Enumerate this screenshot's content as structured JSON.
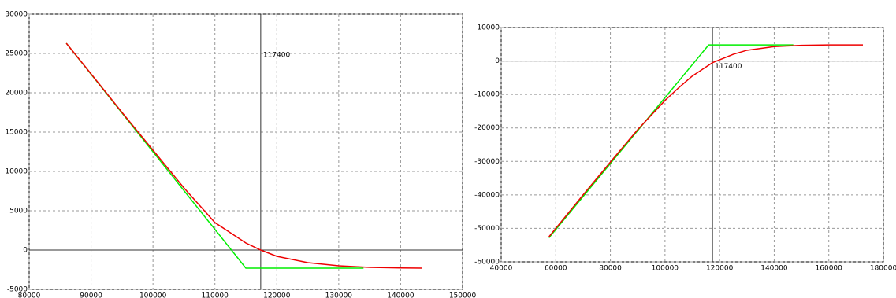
{
  "chart_data": [
    {
      "type": "line",
      "xlim": [
        80000,
        150000
      ],
      "ylim": [
        -5000,
        30000
      ],
      "xticks": [
        80000,
        90000,
        100000,
        110000,
        120000,
        130000,
        140000,
        150000
      ],
      "yticks": [
        -5000,
        0,
        5000,
        10000,
        15000,
        20000,
        25000,
        30000
      ],
      "grid": true,
      "vline": 117400,
      "series": [
        {
          "color": "#00ee00",
          "x": [
            86000,
            115000,
            134000
          ],
          "values": [
            26300,
            -2300,
            -2300
          ]
        },
        {
          "color": "#ee0000",
          "x": [
            86000,
            90000,
            95000,
            100000,
            105000,
            110000,
            115000,
            117400,
            120000,
            125000,
            130000,
            135000,
            140000,
            143500
          ],
          "values": [
            26300,
            22400,
            17500,
            12700,
            7900,
            3500,
            900,
            0,
            -800,
            -1600,
            -2000,
            -2200,
            -2280,
            -2300
          ]
        }
      ]
    },
    {
      "type": "line",
      "xlim": [
        40000,
        180000
      ],
      "ylim": [
        -60000,
        10000
      ],
      "xticks": [
        40000,
        60000,
        80000,
        100000,
        120000,
        140000,
        160000,
        180000
      ],
      "yticks": [
        -60000,
        -50000,
        -40000,
        -30000,
        -20000,
        -10000,
        0,
        10000
      ],
      "grid": true,
      "vline": 117400,
      "series": [
        {
          "color": "#00ee00",
          "x": [
            57500,
            116000,
            147000
          ],
          "values": [
            -52800,
            4800,
            4800
          ]
        },
        {
          "color": "#ee0000",
          "x": [
            57500,
            70000,
            80000,
            90000,
            100000,
            105000,
            110000,
            117400,
            125000,
            130000,
            140000,
            150000,
            160000,
            172500
          ],
          "values": [
            -52500,
            -40000,
            -30200,
            -20500,
            -11800,
            -8000,
            -4500,
            -500,
            2000,
            3200,
            4300,
            4700,
            4800,
            4800
          ]
        }
      ]
    }
  ]
}
